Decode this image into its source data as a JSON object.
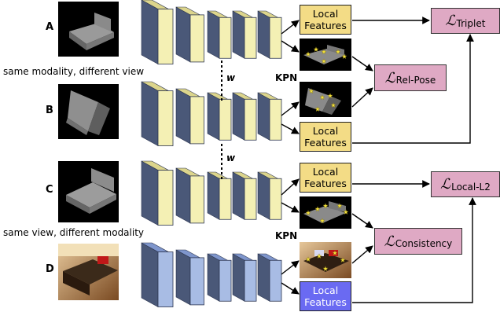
{
  "rows": [
    {
      "label": "A"
    },
    {
      "label": "B"
    },
    {
      "label": "C"
    },
    {
      "label": "D"
    }
  ],
  "notes": {
    "same_modality": "same modality, different view",
    "same_view": "same view, different modality"
  },
  "kpn_label": "KPN",
  "weight_label": "w",
  "features": {
    "line1": "Local",
    "line2": "Features"
  },
  "losses": {
    "symbol": "ℒ",
    "triplet": "Triplet",
    "rel_pose": "Rel-Pose",
    "local_l2": "Local-L2",
    "consistency": "Consistency"
  },
  "colors": {
    "yellow_net": "#f4f0b4",
    "blue_net": "#a8bce4",
    "feature_yellow": "#f3dc86",
    "feature_blue": "#6a6af2",
    "loss_pink": "#dfa9c4"
  }
}
